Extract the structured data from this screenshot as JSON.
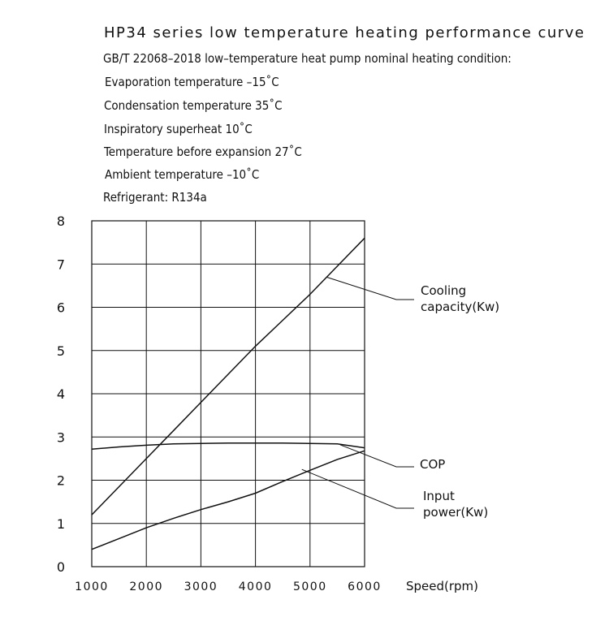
{
  "header": {
    "title": "HP34 series low temperature heating performance curve",
    "lines": [
      "GB/T 22068–2018 low–temperature heat pump nominal heating condition:",
      "Evaporation temperature –15˚C",
      "Condensation  temperature 35˚C",
      "Inspiratory superheat 10˚C",
      "Temperature before expansion 27˚C",
      "Ambient  temperature –10˚C",
      "Refrigerant: R134a"
    ]
  },
  "chart_data": {
    "type": "line",
    "title": "HP34 series low temperature heating performance curve",
    "xlabel": "Speed(rpm)",
    "ylabel": "",
    "xlim": [
      1000,
      6000
    ],
    "ylim": [
      0,
      8
    ],
    "x_ticks": [
      "1000",
      "2000",
      "3000",
      "4000",
      "5000",
      "6000"
    ],
    "y_ticks": [
      "0",
      "1",
      "2",
      "3",
      "4",
      "5",
      "6",
      "7",
      "8"
    ],
    "grid": true,
    "legend": "right, leader-line labels",
    "series": [
      {
        "name": "Cooling capacity(Kw)",
        "label_lines": [
          "Cooling",
          "capacity(Kw)"
        ],
        "x": [
          1000,
          1500,
          2000,
          2500,
          3000,
          3500,
          4000,
          4500,
          5000,
          5500,
          6000
        ],
        "y": [
          1.2,
          1.85,
          2.5,
          3.15,
          3.8,
          4.45,
          5.1,
          5.7,
          6.3,
          6.95,
          7.6
        ],
        "label_anchor": [
          5300,
          6.7
        ]
      },
      {
        "name": "COP",
        "label_lines": [
          "COP"
        ],
        "x": [
          1000,
          1500,
          2000,
          2500,
          3000,
          3500,
          4000,
          4500,
          5000,
          5500,
          6000
        ],
        "y": [
          2.72,
          2.77,
          2.81,
          2.84,
          2.85,
          2.86,
          2.86,
          2.86,
          2.85,
          2.84,
          2.75
        ],
        "label_anchor": [
          5550,
          2.82
        ]
      },
      {
        "name": "Input power(Kw)",
        "label_lines": [
          "Input",
          "power(Kw)"
        ],
        "x": [
          1000,
          1500,
          2000,
          2500,
          3000,
          3500,
          4000,
          4500,
          5000,
          5500,
          6000
        ],
        "y": [
          0.4,
          0.65,
          0.9,
          1.12,
          1.32,
          1.5,
          1.7,
          1.97,
          2.23,
          2.48,
          2.68
        ],
        "label_anchor": [
          4850,
          2.25
        ]
      }
    ]
  }
}
